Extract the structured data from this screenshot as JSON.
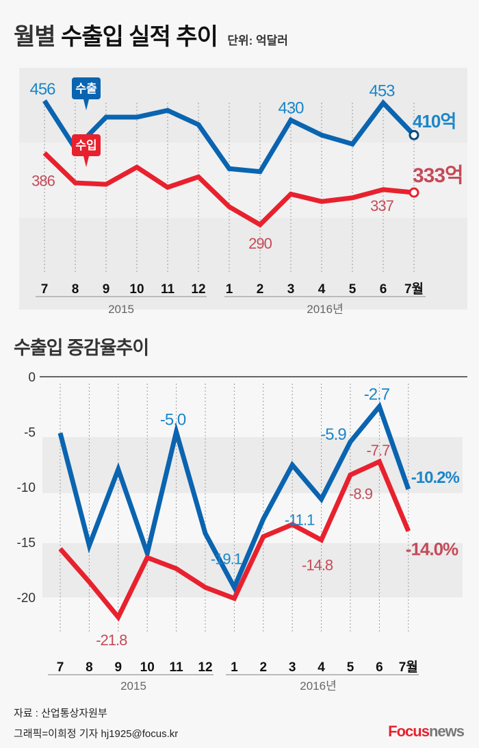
{
  "title": {
    "main_prefix": "월별",
    "main_bold": "수출입 실적 추이",
    "unit": "단위: 억달러"
  },
  "title2": "수출입 증감율추이",
  "colors": {
    "export": "#0a64b0",
    "import": "#e8212e",
    "export_label": "#1a86c8",
    "import_label": "#c44a58",
    "band": "#ebebeb"
  },
  "months": [
    "7",
    "8",
    "9",
    "10",
    "11",
    "12",
    "1",
    "2",
    "3",
    "4",
    "5",
    "6",
    "7월"
  ],
  "years": [
    "2015",
    "2016년"
  ],
  "chart_data": [
    {
      "type": "line",
      "title": "월별 수출입 실적 추이",
      "unit": "억달러",
      "categories": [
        "7",
        "8",
        "9",
        "10",
        "11",
        "12",
        "1",
        "2",
        "3",
        "4",
        "5",
        "6",
        "7월"
      ],
      "series": [
        {
          "name": "수출",
          "values": [
            456,
            392,
            434,
            434,
            443,
            424,
            365,
            361,
            430,
            410,
            398,
            453,
            410
          ]
        },
        {
          "name": "수입",
          "values": [
            386,
            346,
            344,
            367,
            340,
            354,
            314,
            290,
            331,
            321,
            326,
            337,
            333
          ]
        }
      ],
      "labels": [
        {
          "series": 0,
          "index": 0,
          "text": "456"
        },
        {
          "series": 0,
          "index": 8,
          "text": "430"
        },
        {
          "series": 0,
          "index": 11,
          "text": "453"
        },
        {
          "series": 0,
          "index": 12,
          "text": "410억"
        },
        {
          "series": 1,
          "index": 0,
          "text": "386"
        },
        {
          "series": 1,
          "index": 7,
          "text": "290"
        },
        {
          "series": 1,
          "index": 11,
          "text": "337"
        },
        {
          "series": 1,
          "index": 12,
          "text": "333억"
        }
      ],
      "grid": false
    },
    {
      "type": "line",
      "title": "수출입 증감율추이",
      "unit": "%",
      "categories": [
        "7",
        "8",
        "9",
        "10",
        "11",
        "12",
        "1",
        "2",
        "3",
        "4",
        "5",
        "6",
        "7월"
      ],
      "yticks": [
        "0",
        "-5",
        "-10",
        "-15",
        "-20"
      ],
      "ylim": [
        -23,
        0
      ],
      "series": [
        {
          "name": "수출",
          "values": [
            -5.1,
            -15.3,
            -8.4,
            -16.0,
            -5.0,
            -14.2,
            -19.1,
            -12.9,
            -8.0,
            -11.1,
            -5.9,
            -2.7,
            -10.2
          ]
        },
        {
          "name": "수입",
          "values": [
            -15.6,
            -18.6,
            -21.8,
            -16.4,
            -17.4,
            -19.1,
            -20.1,
            -14.5,
            -13.4,
            -14.8,
            -8.9,
            -7.7,
            -14.0
          ]
        }
      ],
      "labels": [
        {
          "series": 0,
          "index": 4,
          "text": "-5.0"
        },
        {
          "series": 0,
          "index": 11,
          "text": "-2.7"
        },
        {
          "series": 0,
          "index": 10,
          "text": "-5.9"
        },
        {
          "series": 0,
          "index": 12,
          "text": "-10.2%"
        },
        {
          "series": 0,
          "index": 9,
          "text": "-11.1"
        },
        {
          "series": 0,
          "index": 6,
          "text": "-19.1"
        },
        {
          "series": 1,
          "index": 2,
          "text": "-21.8"
        },
        {
          "series": 1,
          "index": 9,
          "text": "-14.8"
        },
        {
          "series": 1,
          "index": 10,
          "text": "-8.9"
        },
        {
          "series": 1,
          "index": 11,
          "text": "-7.7"
        },
        {
          "series": 1,
          "index": 12,
          "text": "-14.0%"
        }
      ],
      "grid": false
    }
  ],
  "footer": {
    "source": "자료 : 산업통상자원부",
    "credit": "그래픽=이희정 기자 hj1925@focus.kr",
    "logo_focus": "Focus",
    "logo_news": "news"
  }
}
